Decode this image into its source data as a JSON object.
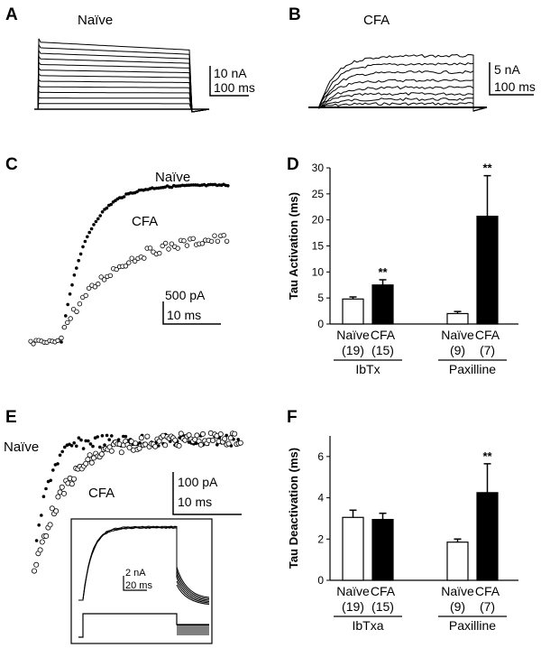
{
  "panels": {
    "A": {
      "letter": "A",
      "condition": "Naïve",
      "scale_current": "10 nA",
      "scale_time": "100 ms"
    },
    "B": {
      "letter": "B",
      "condition": "CFA",
      "scale_current": "5 nA",
      "scale_time": "100 ms"
    },
    "C": {
      "letter": "C",
      "label_naive": "Naïve",
      "label_cfa": "CFA",
      "scale_current": "500 pA",
      "scale_time": "10 ms"
    },
    "E": {
      "letter": "E",
      "label_naive": "Naïve",
      "label_cfa": "CFA",
      "scale_current": "100 pA",
      "scale_time": "10 ms",
      "inset_scale_current": "2 nA",
      "inset_scale_time": "20 ms"
    }
  },
  "chart_data": [
    {
      "panel": "D",
      "type": "bar",
      "ylabel": "Tau Activation (ms)",
      "ylim": [
        0,
        30
      ],
      "yticks": [
        0,
        5,
        10,
        15,
        20,
        25,
        30
      ],
      "groups": [
        {
          "name": "IbTx",
          "bars": [
            {
              "label": "Naïve",
              "n": "(19)",
              "value": 4.8,
              "error": 0.4,
              "fill": "#ffffff",
              "sig": ""
            },
            {
              "label": "CFA",
              "n": "(15)",
              "value": 7.5,
              "error": 1.0,
              "fill": "#000000",
              "sig": "**"
            }
          ]
        },
        {
          "name": "Paxilline",
          "bars": [
            {
              "label": "Naïve",
              "n": "(9)",
              "value": 2.0,
              "error": 0.4,
              "fill": "#ffffff",
              "sig": ""
            },
            {
              "label": "CFA",
              "n": "(7)",
              "value": 20.7,
              "error": 7.8,
              "fill": "#000000",
              "sig": "**"
            }
          ]
        }
      ]
    },
    {
      "panel": "F",
      "type": "bar",
      "ylabel": "Tau Deactivation (ms)",
      "ylim": [
        0,
        7
      ],
      "yticks": [
        0,
        2,
        4,
        6
      ],
      "groups": [
        {
          "name": "IbTxa",
          "bars": [
            {
              "label": "Naïve",
              "n": "(19)",
              "value": 3.05,
              "error": 0.35,
              "fill": "#ffffff",
              "sig": ""
            },
            {
              "label": "CFA",
              "n": "(15)",
              "value": 2.95,
              "error": 0.3,
              "fill": "#000000",
              "sig": ""
            }
          ]
        },
        {
          "name": "Paxilline",
          "bars": [
            {
              "label": "Naïve",
              "n": "(9)",
              "value": 1.85,
              "error": 0.15,
              "fill": "#ffffff",
              "sig": ""
            },
            {
              "label": "CFA",
              "n": "(7)",
              "value": 4.25,
              "error": 1.4,
              "fill": "#000000",
              "sig": "**"
            }
          ]
        }
      ]
    }
  ],
  "chart_letters": {
    "D": "D",
    "F": "F"
  }
}
